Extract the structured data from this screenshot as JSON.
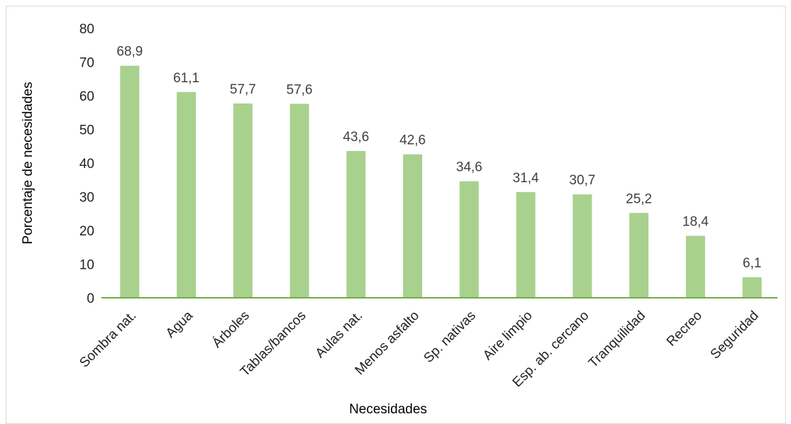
{
  "chart_data": {
    "type": "bar",
    "categories": [
      "Sombra nat.",
      "Agua",
      "Árboles",
      "Tablas/bancos",
      "Aulas nat.",
      "Menos asfalto",
      "Sp. nativas",
      "Aire limpio",
      "Esp. ab. cercano",
      "Tranquilidad",
      "Recreo",
      "Seguridad"
    ],
    "series": [
      {
        "values": [
          68.9,
          61.1,
          57.7,
          57.6,
          43.6,
          42.6,
          34.6,
          31.4,
          30.7,
          25.2,
          18.4,
          6.1
        ]
      }
    ],
    "data_labels": [
      "68,9",
      "61,1",
      "57,7",
      "57,6",
      "43,6",
      "42,6",
      "34,6",
      "31,4",
      "30,7",
      "25,2",
      "18,4",
      "6,1"
    ],
    "y_ticks": [
      "0",
      "10",
      "20",
      "30",
      "40",
      "50",
      "60",
      "70",
      "80"
    ],
    "ylim": [
      0,
      80
    ],
    "title": "",
    "xlabel": "Necesidades",
    "ylabel": "Porcentaje de necesidades",
    "grid": false,
    "colors": {
      "bar": "#a9d18e",
      "axis": "#70ad47"
    }
  }
}
